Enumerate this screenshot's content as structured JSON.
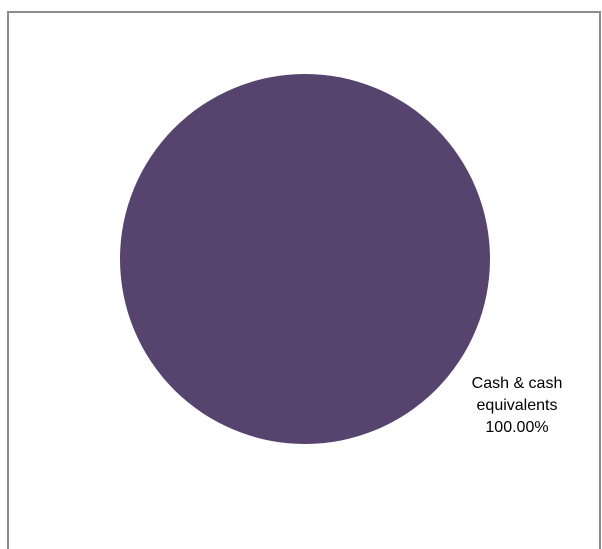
{
  "chart_data": {
    "type": "pie",
    "title": "",
    "slices": [
      {
        "name": "Cash & cash equivalents",
        "value": 100.0,
        "label_lines": [
          "Cash &amp; cash",
          "equivalents",
          "100.00%"
        ],
        "color": "#56436e"
      }
    ],
    "legend": "none"
  }
}
